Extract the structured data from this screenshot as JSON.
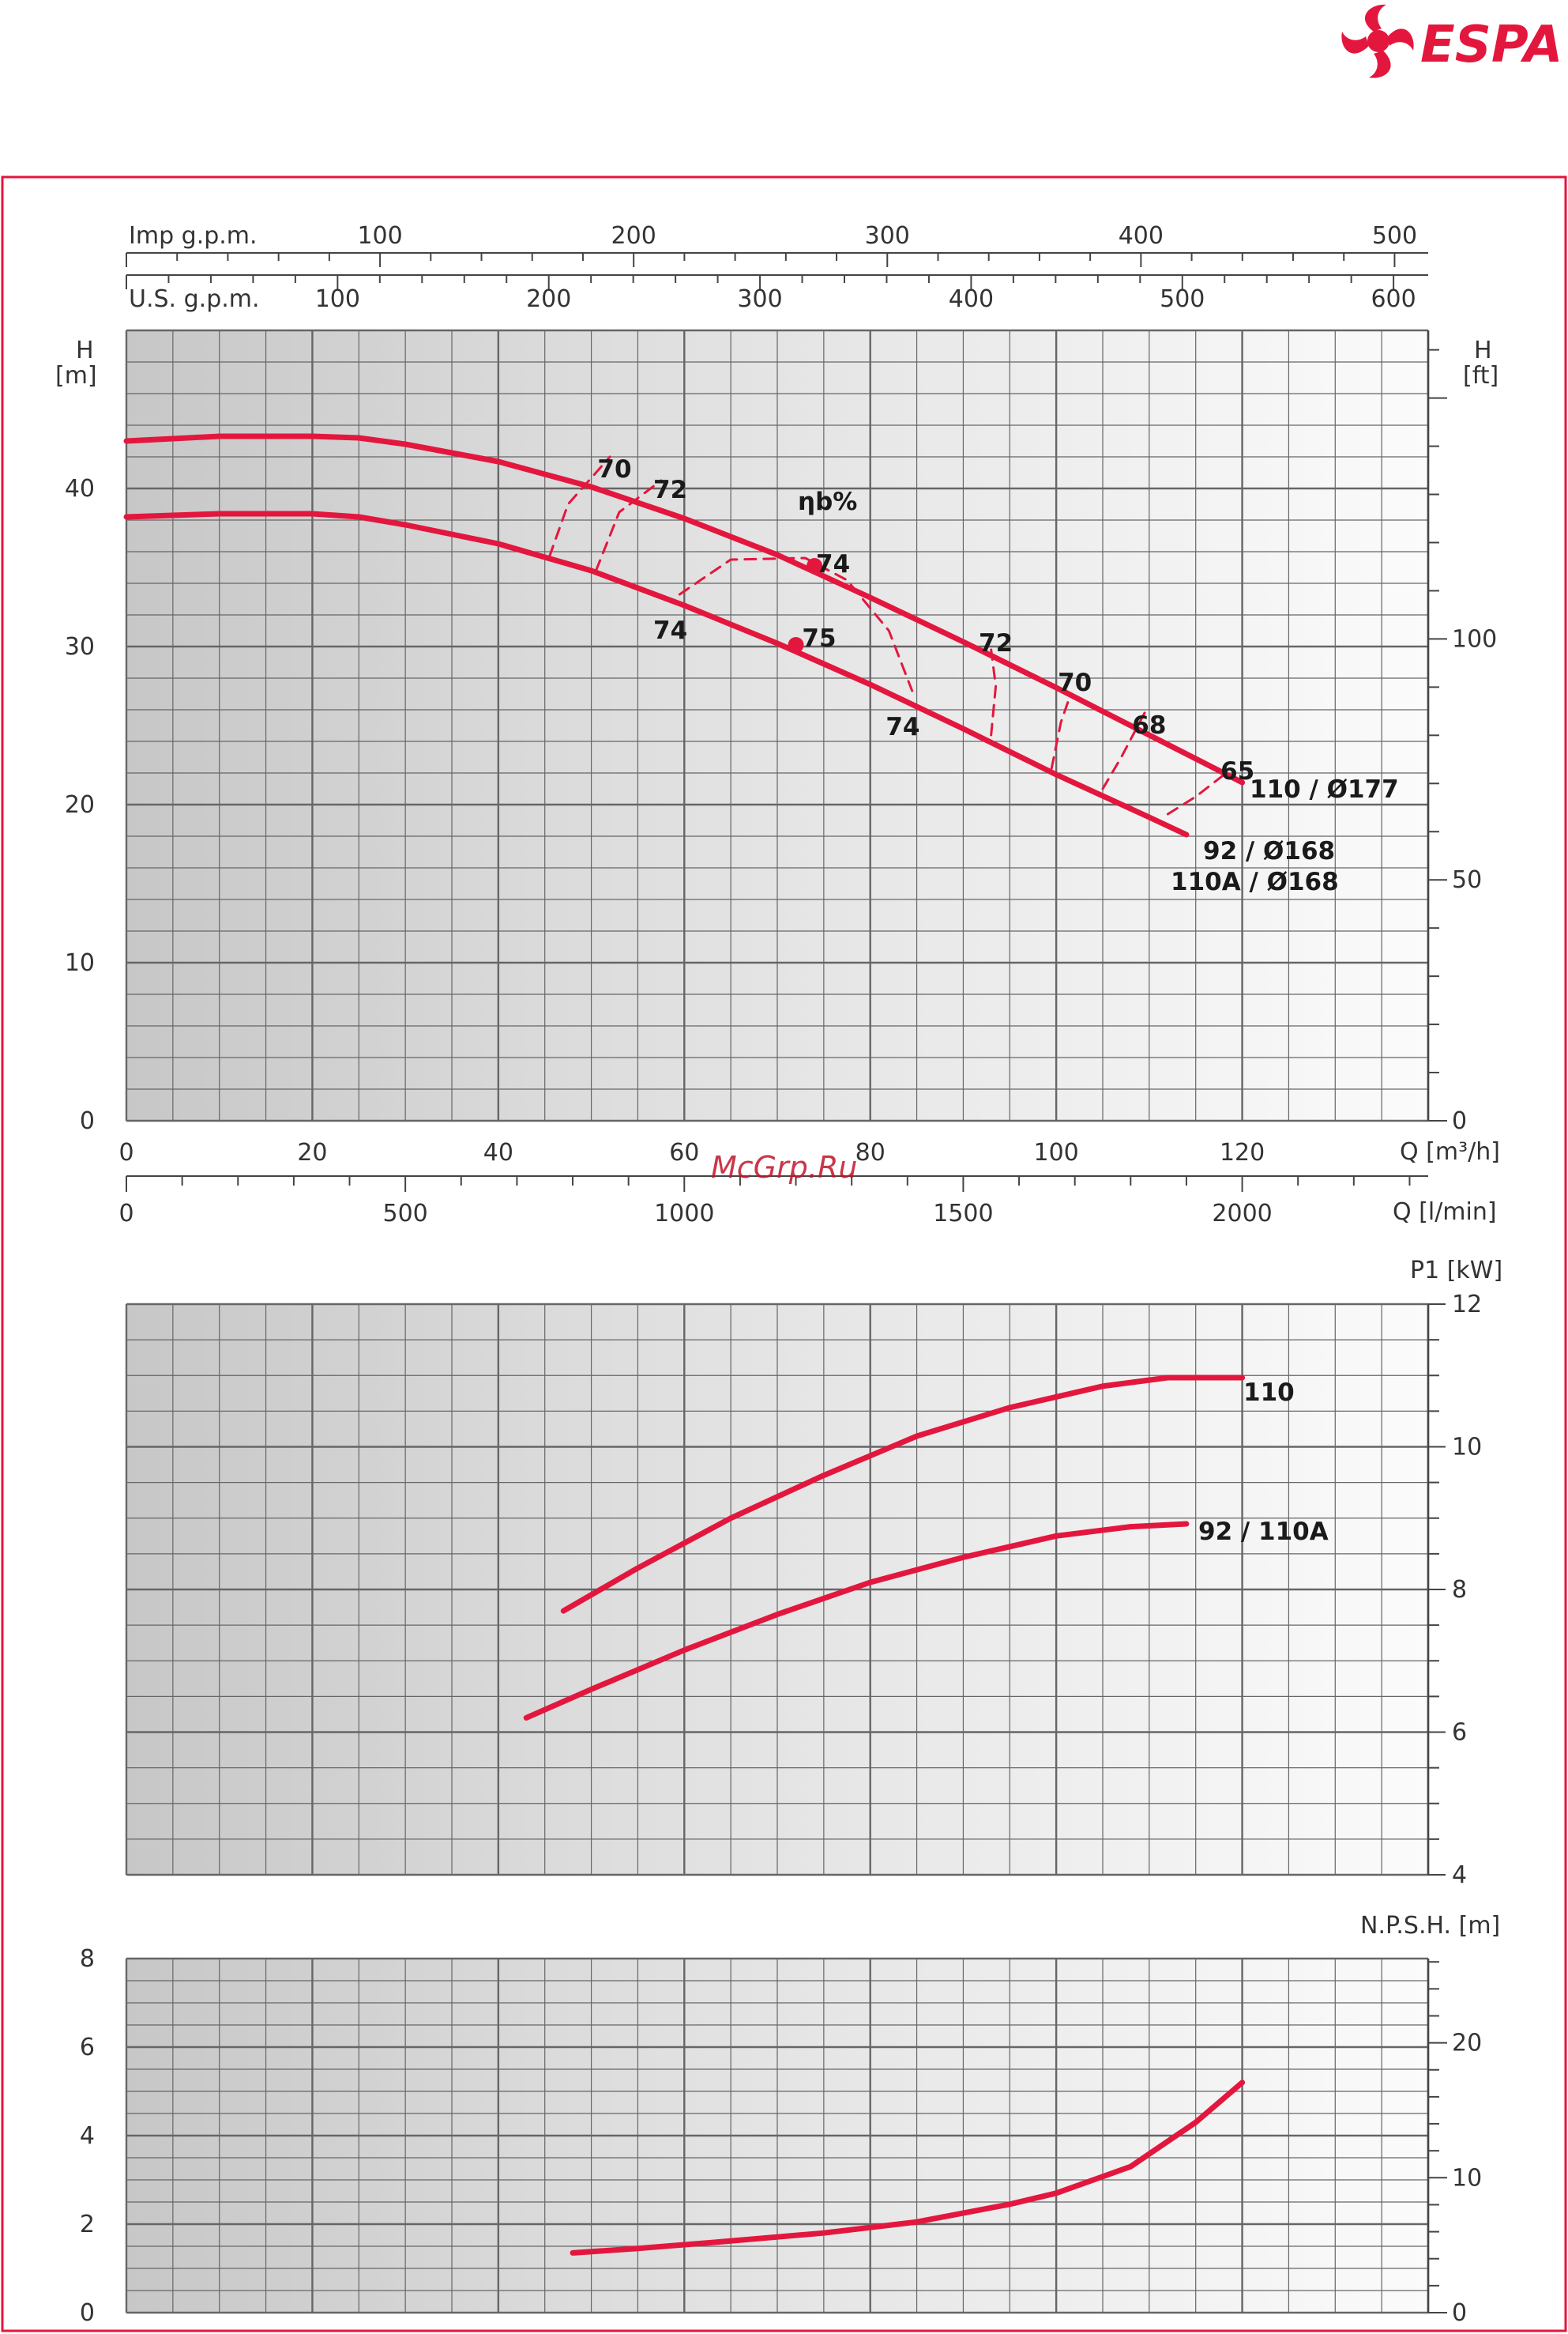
{
  "brand": {
    "name": "ESPA",
    "color": "#e3173e"
  },
  "watermark": "McGrp.Ru",
  "colors": {
    "curve": "#e3173e",
    "frame": "#e3173e",
    "grid": "#666666"
  },
  "chart_data": [
    {
      "type": "line",
      "id": "head",
      "y_left_label": [
        "H",
        "[m]"
      ],
      "y_right_label": [
        "H",
        "[ft]"
      ],
      "x_label_m3h": "Q [m³/h]",
      "x_label_lmin": "Q [l/min]",
      "x_label_imp": "Imp g.p.m.",
      "x_label_us": "U.S. g.p.m.",
      "eff_label": "ηb%",
      "xlim": [
        0,
        140
      ],
      "ylim": [
        0,
        50
      ],
      "ticks_m3h": [
        "0",
        "20",
        "40",
        "60",
        "80",
        "100",
        "120"
      ],
      "ticks_lmin": [
        "0",
        "500",
        "1000",
        "1500",
        "2000"
      ],
      "ticks_imp": [
        "100",
        "200",
        "300",
        "400",
        "500"
      ],
      "ticks_us": [
        "100",
        "200",
        "300",
        "400",
        "500",
        "600"
      ],
      "ticks_left": [
        "0",
        "10",
        "20",
        "30",
        "40"
      ],
      "ticks_right": [
        "0",
        "50",
        "100"
      ],
      "series": [
        {
          "name": "110 / Ø177",
          "x": [
            0,
            10,
            20,
            25,
            30,
            40,
            50,
            60,
            70,
            80,
            90,
            100,
            110,
            120
          ],
          "y": [
            43,
            43.3,
            43.3,
            43.2,
            42.8,
            41.7,
            40.1,
            38.1,
            35.8,
            33.1,
            30.3,
            27.4,
            24.4,
            21.4
          ]
        },
        {
          "name": "92 / Ø168",
          "name2": "110A / Ø168",
          "x": [
            0,
            10,
            20,
            25,
            30,
            40,
            50,
            60,
            70,
            80,
            90,
            100,
            110,
            114
          ],
          "y": [
            38.2,
            38.4,
            38.4,
            38.2,
            37.7,
            36.5,
            34.8,
            32.6,
            30.2,
            27.6,
            24.8,
            21.9,
            19.2,
            18.1
          ]
        }
      ],
      "efficiency": [
        {
          "label": "70",
          "x": [
            45.5,
            47.5,
            52
          ],
          "y": [
            35.7,
            39.0,
            42.0
          ]
        },
        {
          "label": "72",
          "x": [
            50.5,
            53,
            57.5
          ],
          "y": [
            34.8,
            38.5,
            40.5
          ]
        },
        {
          "label": "74",
          "x": [
            59.5,
            65,
            73,
            77.5,
            82,
            84.5
          ],
          "y": [
            33.3,
            35.5,
            35.6,
            34.2,
            31.0,
            27.2
          ]
        },
        {
          "label": "72",
          "x": [
            93,
            93.5,
            93
          ],
          "y": [
            24.4,
            27.5,
            29.8
          ]
        },
        {
          "label": "70",
          "x": [
            99.5,
            100.5,
            101.5
          ],
          "y": [
            22.3,
            25.2,
            26.9
          ]
        },
        {
          "label": "68",
          "x": [
            105,
            107,
            109.5
          ],
          "y": [
            21.0,
            23.0,
            25.8
          ]
        },
        {
          "label": "65",
          "x": [
            112,
            115,
            118.5
          ],
          "y": [
            19.4,
            20.5,
            22.1
          ]
        }
      ],
      "eff_labels": [
        {
          "text": "70",
          "x": 52.5,
          "y": 41.2
        },
        {
          "text": "72",
          "x": 58.5,
          "y": 39.9
        },
        {
          "text": "74",
          "x": 76,
          "y": 35.2
        },
        {
          "text": "75",
          "x": 74.5,
          "y": 30.5
        },
        {
          "text": "74",
          "x": 58.5,
          "y": 31.0
        },
        {
          "text": "74",
          "x": 83.5,
          "y": 24.9
        },
        {
          "text": "72",
          "x": 93.5,
          "y": 30.2
        },
        {
          "text": "70",
          "x": 102,
          "y": 27.7
        },
        {
          "text": "68",
          "x": 110,
          "y": 25.0
        },
        {
          "text": "65",
          "x": 119.5,
          "y": 22.1
        }
      ],
      "bep_points": [
        {
          "x": 74,
          "y": 35.1
        },
        {
          "x": 72,
          "y": 30.1
        }
      ]
    },
    {
      "type": "line",
      "id": "power",
      "y_right_label": "P1 [kW]",
      "xlim": [
        0,
        140
      ],
      "ylim": [
        4,
        12
      ],
      "ticks_right": [
        "4",
        "6",
        "8",
        "10",
        "12"
      ],
      "series": [
        {
          "name": "110",
          "x": [
            47,
            55,
            65,
            75,
            85,
            95,
            105,
            112,
            120
          ],
          "y": [
            7.7,
            8.3,
            9.0,
            9.6,
            10.15,
            10.55,
            10.85,
            10.97,
            10.97
          ]
        },
        {
          "name": "92 / 110A",
          "x": [
            43,
            50,
            60,
            70,
            80,
            90,
            100,
            108,
            114
          ],
          "y": [
            6.2,
            6.6,
            7.15,
            7.65,
            8.1,
            8.45,
            8.75,
            8.88,
            8.92
          ]
        }
      ]
    },
    {
      "type": "line",
      "id": "npsh",
      "y_right_label": "N.P.S.H. [m]",
      "xlim": [
        0,
        140
      ],
      "ylim": [
        0,
        8
      ],
      "ticks_left": [
        "0",
        "2",
        "4",
        "6",
        "8"
      ],
      "ticks_right": [
        "0",
        "10",
        "20"
      ],
      "series": [
        {
          "name": "NPSH",
          "x": [
            48,
            55,
            65,
            75,
            85,
            95,
            100,
            108,
            115,
            120
          ],
          "y": [
            1.35,
            1.45,
            1.62,
            1.8,
            2.05,
            2.45,
            2.7,
            3.3,
            4.3,
            5.2
          ]
        }
      ]
    }
  ]
}
